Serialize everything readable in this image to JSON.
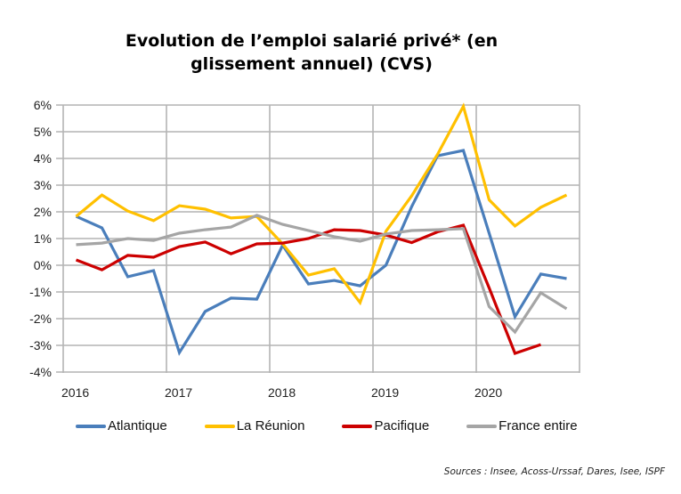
{
  "chart_data": {
    "type": "line",
    "title": "Evolution de l’emploi salarié privé* (en glissement annuel) (CVS)",
    "title_lines": [
      "Evolution de l’emploi salarié privé* (en",
      "glissement annuel) (CVS)"
    ],
    "xlabel": "",
    "ylabel": "",
    "ylim": [
      -4,
      6
    ],
    "yticks": [
      6,
      5,
      4,
      3,
      2,
      1,
      0,
      -1,
      -2,
      -3,
      -4
    ],
    "ytick_labels": [
      "6%",
      "5%",
      "4%",
      "3%",
      "2%",
      "1%",
      "0%",
      "-1%",
      "-2%",
      "-3%",
      "-4%"
    ],
    "xtick_labels": [
      "2016",
      "2017",
      "2018",
      "2019",
      "2020"
    ],
    "x": [
      "2016T1",
      "2016T2",
      "2016T3",
      "2016T4",
      "2017T1",
      "2017T2",
      "2017T3",
      "2017T4",
      "2018T1",
      "2018T2",
      "2018T3",
      "2018T4",
      "2019T1",
      "2019T2",
      "2019T3",
      "2019T4",
      "2020T1",
      "2020T2",
      "2020T3",
      "2020T4"
    ],
    "grid": true,
    "legend_position": "bottom",
    "series": [
      {
        "name": "Atlantique",
        "color": "#4a7ebb",
        "values": [
          1.83,
          1.4,
          -0.43,
          -0.2,
          -3.27,
          -1.73,
          -1.23,
          -1.27,
          0.75,
          -0.7,
          -0.57,
          -0.77,
          0.0,
          2.2,
          4.1,
          4.3,
          1.2,
          -1.93,
          -0.33,
          -0.5
        ]
      },
      {
        "name": "La Réunion",
        "color": "#ffc000",
        "values": [
          1.83,
          2.63,
          2.03,
          1.67,
          2.23,
          2.1,
          1.77,
          1.83,
          0.8,
          -0.37,
          -0.13,
          -1.4,
          1.27,
          2.6,
          4.15,
          5.95,
          2.45,
          1.47,
          2.17,
          2.63
        ]
      },
      {
        "name": "Pacifique",
        "color": "#cc0000",
        "values": [
          0.2,
          -0.17,
          0.37,
          0.3,
          0.7,
          0.87,
          0.43,
          0.8,
          0.83,
          1.0,
          1.33,
          1.3,
          1.13,
          0.85,
          1.25,
          1.5,
          -0.85,
          -3.3,
          -2.97,
          null
        ]
      },
      {
        "name": "France entire",
        "color": "#a5a5a5",
        "values": [
          0.77,
          0.83,
          1.0,
          0.93,
          1.2,
          1.33,
          1.43,
          1.87,
          1.53,
          1.3,
          1.07,
          0.9,
          1.17,
          1.3,
          1.33,
          1.37,
          -1.55,
          -2.5,
          -1.03,
          -1.63
        ]
      }
    ]
  },
  "source": "Sources : Insee, Acoss-Urssaf, Dares, Isee, ISPF"
}
